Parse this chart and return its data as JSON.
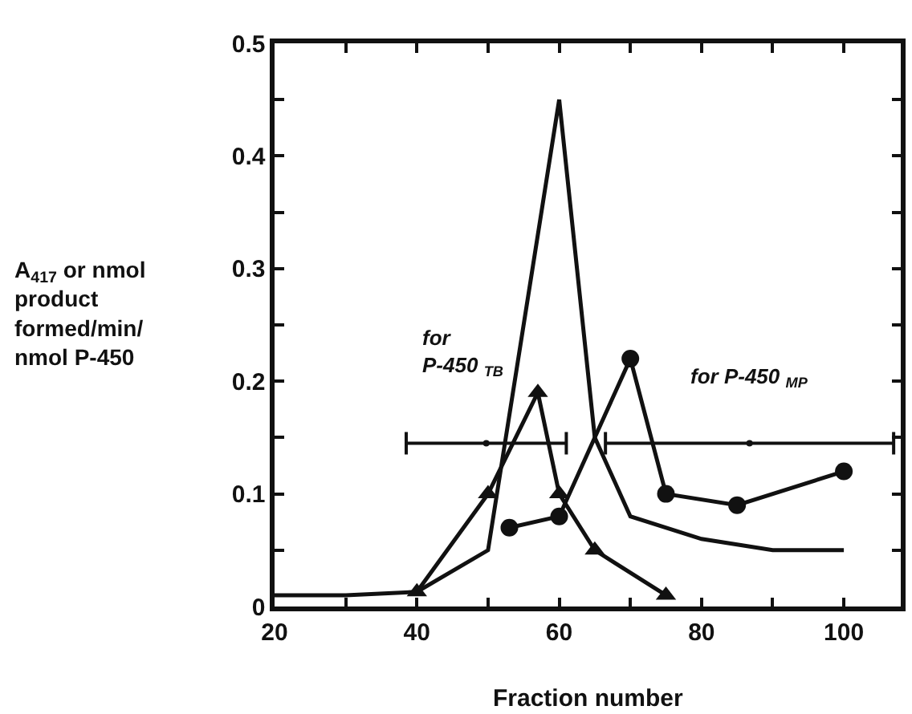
{
  "chart_data": {
    "type": "line",
    "xlabel": "Fraction number",
    "ylabel": "A$_{417}$ or nmol product formed/min/ nmol P-450",
    "series": [
      {
        "color": "#111111",
        "marker": "none",
        "x": [
          20,
          30,
          40,
          50,
          60,
          65,
          70,
          80,
          90,
          100
        ],
        "values": [
          0.01,
          0.01,
          0.013,
          0.05,
          0.45,
          0.15,
          0.08,
          0.06,
          0.05,
          0.05
        ]
      },
      {
        "color": "#111111",
        "marker": "triangle",
        "x": [
          40,
          50,
          57,
          60,
          65,
          75
        ],
        "values": [
          0.013,
          0.1,
          0.19,
          0.1,
          0.05,
          0.01
        ]
      },
      {
        "color": "#111111",
        "marker": "circle",
        "x": [
          53,
          60,
          70,
          75,
          85,
          100
        ],
        "values": [
          0.07,
          0.08,
          0.22,
          0.1,
          0.09,
          0.12
        ]
      },
      {
        "type": "scatter",
        "color": "#111111",
        "marker": "circle",
        "x": [
          49.75,
          86.75
        ],
        "values": [
          0.145,
          0.145
        ],
        "xerrors": [
          [
            38.5,
            61
          ],
          [
            66.5,
            107
          ]
        ]
      }
    ],
    "annotations": [
      "for\nP-450 $_{TB}$",
      "for P-450 $_{MP}$"
    ],
    "xlim": [
      20,
      108
    ],
    "ylim": [
      0,
      0.5
    ],
    "xticks": [
      20,
      {
        "value": 30,
        "label": null
      },
      40,
      {
        "value": 50,
        "label": null
      },
      60,
      {
        "value": 70,
        "label": null
      },
      80,
      {
        "value": 90,
        "label": null
      },
      100
    ],
    "yticks": [
      0,
      {
        "value": 0.05,
        "label": null
      },
      0.1,
      {
        "value": 0.15,
        "label": null
      },
      0.2,
      {
        "value": 0.25,
        "label": null
      },
      0.3,
      {
        "value": 0.35,
        "label": null
      },
      0.4,
      {
        "value": 0.45,
        "label": null
      },
      0.5
    ],
    "legend": false,
    "line_style": "solid"
  }
}
